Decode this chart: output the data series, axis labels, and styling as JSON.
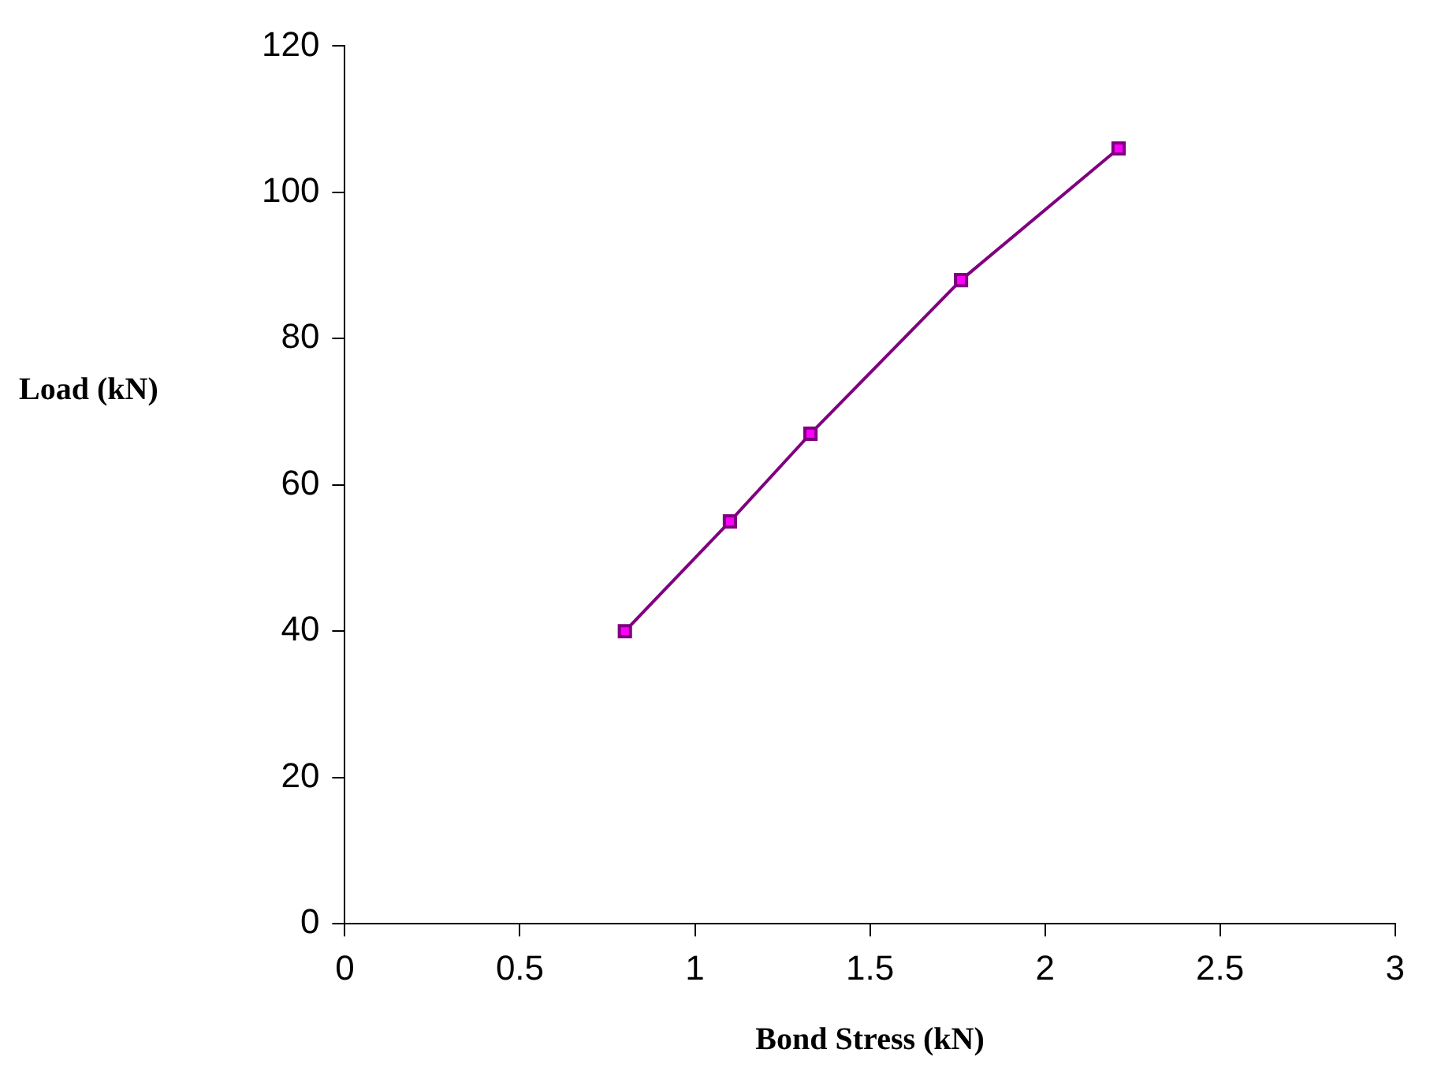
{
  "chart_data": {
    "type": "line",
    "xlabel": "Bond Stress (kN)",
    "ylabel": "Load (kN)",
    "x": [
      0.8,
      1.1,
      1.33,
      1.76,
      2.21
    ],
    "series": [
      {
        "color": "#800080",
        "values": [
          40,
          55,
          67,
          88,
          106
        ]
      }
    ],
    "xlim": [
      0,
      3
    ],
    "xticks": [
      0,
      0.5,
      1,
      1.5,
      2,
      2.5,
      3
    ],
    "ylim": [
      0,
      120
    ],
    "yticks": [
      0,
      20,
      40,
      60,
      80,
      100,
      120
    ],
    "grid": false,
    "legend": false,
    "marker": "square",
    "line_style": "solid"
  }
}
